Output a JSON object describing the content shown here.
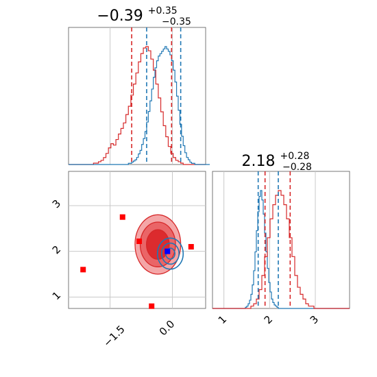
{
  "chart_data": [
    {
      "type": "histogram",
      "panel": "top-left",
      "title": {
        "base": "−0.39",
        "plus": "+0.35",
        "minus": "−0.35"
      },
      "xlim": [
        -2.5,
        0.8
      ],
      "series": [
        {
          "color": "#d62728",
          "bin_start": -2.5,
          "bin_width": 0.06,
          "counts": [
            0,
            0,
            0,
            0,
            0,
            0,
            0,
            0,
            0,
            0,
            1,
            1,
            2,
            3,
            5,
            8,
            12,
            15,
            14,
            18,
            22,
            26,
            30,
            36,
            42,
            50,
            58,
            66,
            74,
            80,
            84,
            85,
            82,
            76,
            68,
            58,
            48,
            38,
            28,
            20,
            13,
            8,
            5,
            3,
            2,
            1,
            0,
            0,
            0,
            0,
            0,
            0,
            0,
            0,
            0
          ]
        },
        {
          "color": "#1f77b4",
          "bin_start": -2.5,
          "bin_width": 0.04,
          "counts": [
            0,
            0,
            0,
            0,
            0,
            0,
            0,
            0,
            0,
            0,
            0,
            0,
            0,
            0,
            0,
            0,
            0,
            0,
            0,
            0,
            0,
            0,
            0,
            0,
            0,
            0,
            0,
            0,
            0,
            0,
            0,
            0,
            0,
            0,
            0,
            0,
            1,
            1,
            2,
            3,
            4,
            6,
            9,
            12,
            17,
            22,
            28,
            36,
            45,
            54,
            64,
            74,
            82,
            88,
            92,
            94,
            96,
            98,
            100,
            98,
            96,
            93,
            88,
            80,
            70,
            58,
            46,
            34,
            24,
            16,
            10,
            6,
            4,
            2,
            1,
            1,
            0,
            0,
            0,
            0,
            0,
            0,
            0,
            0,
            0
          ]
        }
      ],
      "quantile_lines": [
        {
          "color": "#d62728",
          "values": [
            -0.98,
            -0.02
          ]
        },
        {
          "color": "#1f77b4",
          "values": [
            -0.62,
            0.2
          ]
        }
      ]
    },
    {
      "type": "histogram",
      "panel": "bottom-right",
      "title": {
        "base": "2.18",
        "plus": "+0.28",
        "minus": "−0.28"
      },
      "xlim": [
        0.75,
        3.75
      ],
      "xticks": [
        "1",
        "2",
        "3"
      ],
      "series": [
        {
          "color": "#1f77b4",
          "bin_start": 0.75,
          "bin_width": 0.03,
          "counts": [
            0,
            0,
            0,
            0,
            0,
            0,
            0,
            0,
            0,
            0,
            0,
            0,
            0,
            0,
            0,
            0,
            0,
            0,
            0,
            0,
            0,
            0,
            0,
            0,
            1,
            2,
            4,
            7,
            12,
            20,
            32,
            48,
            66,
            82,
            95,
            100,
            92,
            80,
            64,
            48,
            34,
            22,
            14,
            8,
            5,
            3,
            2,
            1,
            0,
            0,
            0,
            0,
            0,
            0,
            0,
            0,
            0,
            0,
            0,
            0,
            0,
            0,
            0,
            0,
            0,
            0,
            0,
            0,
            0,
            0,
            0,
            0,
            0,
            0,
            0,
            0,
            0,
            0,
            0,
            0,
            0,
            0,
            0,
            0,
            0,
            0,
            0,
            0,
            0,
            0,
            0,
            0,
            0,
            0,
            0,
            0,
            0,
            0,
            0,
            0
          ]
        },
        {
          "color": "#d62728",
          "bin_start": 0.75,
          "bin_width": 0.06,
          "counts": [
            0,
            0,
            0,
            0,
            0,
            0,
            0,
            0,
            0,
            0,
            0,
            0,
            0,
            0,
            1,
            2,
            4,
            8,
            14,
            22,
            30,
            38,
            44,
            48,
            50,
            48,
            44,
            38,
            30,
            22,
            14,
            9,
            6,
            4,
            2,
            1,
            1,
            0,
            0,
            0,
            0,
            0,
            0,
            0,
            0,
            0,
            0,
            0,
            0,
            0
          ]
        }
      ],
      "quantile_lines": [
        {
          "color": "#1f77b4",
          "values": [
            1.75,
            2.19
          ]
        },
        {
          "color": "#d62728",
          "values": [
            1.9,
            2.45
          ]
        }
      ]
    },
    {
      "type": "contour",
      "panel": "bottom-left",
      "xlim": [
        -2.5,
        0.8
      ],
      "ylim": [
        0.75,
        3.75
      ],
      "xticks": [
        "−1.5",
        "0.0"
      ],
      "yticks": [
        "1",
        "2",
        "3"
      ],
      "red_contours": {
        "color": "#d62728",
        "center": [
          -0.35,
          2.15
        ],
        "levels": [
          {
            "rx": 1.1,
            "ry": 1.3,
            "fill": "#f4a6a7"
          },
          {
            "rx": 0.85,
            "ry": 0.98,
            "fill": "#ea6567"
          },
          {
            "rx": 0.55,
            "ry": 0.65,
            "fill": "#dc2b2e"
          }
        ]
      },
      "blue_contours": {
        "color": "#1f77b4",
        "center": [
          -0.05,
          1.95
        ],
        "levels": [
          {
            "rx": 0.62,
            "ry": 0.68
          },
          {
            "rx": 0.42,
            "ry": 0.46
          },
          {
            "rx": 0.22,
            "ry": 0.24
          }
        ]
      },
      "markers": [
        {
          "color": "#ff0000",
          "x": -1.2,
          "y": 2.75
        },
        {
          "color": "#ff0000",
          "x": -0.8,
          "y": 2.22
        },
        {
          "color": "#ff0000",
          "x": 0.45,
          "y": 2.1
        },
        {
          "color": "#ff0000",
          "x": -2.15,
          "y": 1.6
        },
        {
          "color": "#ff0000",
          "x": -0.5,
          "y": 0.8
        },
        {
          "color": "#0000ff",
          "x": -0.12,
          "y": 2.0
        }
      ]
    }
  ]
}
